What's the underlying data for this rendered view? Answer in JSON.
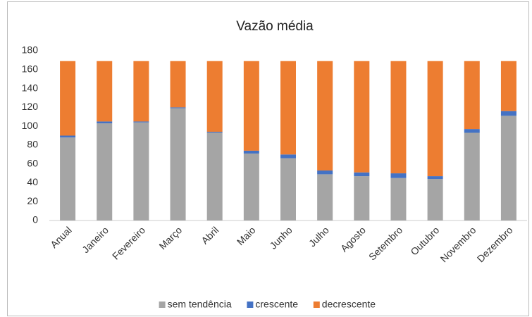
{
  "chart_data": {
    "type": "stacked_bar",
    "title": "Vazão média",
    "categories": [
      "Anual",
      "Janeiro",
      "Fevereiro",
      "Março",
      "Abril",
      "Maio",
      "Junho",
      "Julho",
      "Agosto",
      "Setembro",
      "Outubro",
      "Novembro",
      "Dezembro"
    ],
    "series": [
      {
        "name": "sem tendência",
        "color": "#a5a5a5",
        "values": [
          88,
          103,
          104,
          119,
          93,
          71,
          66,
          49,
          47,
          45,
          44,
          93,
          111
        ]
      },
      {
        "name": "crescente",
        "color": "#4472c4",
        "values": [
          2,
          2,
          1,
          1,
          1,
          3,
          4,
          4,
          4,
          5,
          3,
          4,
          5
        ]
      },
      {
        "name": "decrescente",
        "color": "#ed7d31",
        "values": [
          79,
          64,
          64,
          49,
          75,
          95,
          99,
          116,
          118,
          119,
          122,
          72,
          53
        ]
      }
    ],
    "ylim": [
      0,
      180
    ],
    "yticks": [
      0,
      20,
      40,
      60,
      80,
      100,
      120,
      140,
      160,
      180
    ],
    "grid": false,
    "legend": "bottom"
  }
}
